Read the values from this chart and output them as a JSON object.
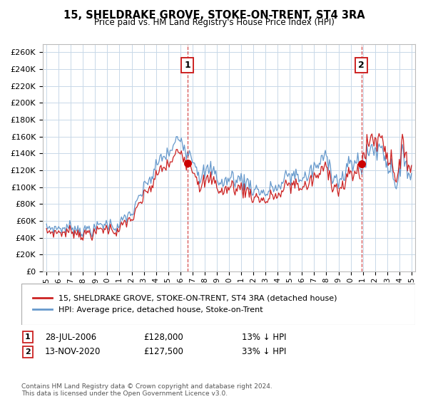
{
  "title": "15, SHELDRAKE GROVE, STOKE-ON-TRENT, ST4 3RA",
  "subtitle": "Price paid vs. HM Land Registry's House Price Index (HPI)",
  "ylim": [
    0,
    270000
  ],
  "yticks": [
    0,
    20000,
    40000,
    60000,
    80000,
    100000,
    120000,
    140000,
    160000,
    180000,
    200000,
    220000,
    240000,
    260000
  ],
  "fig_bg": "#ffffff",
  "plot_bg": "#ffffff",
  "grid_color": "#c8d8e8",
  "hpi_color": "#6699cc",
  "price_color": "#cc2222",
  "vline_color": "#cc2222",
  "marker_color": "#cc0000",
  "t1_year": 2006.583,
  "t2_year": 2020.875,
  "price1": 128000,
  "price2": 127500,
  "annotation1": {
    "label": "1",
    "date": "28-JUL-2006",
    "price": "£128,000",
    "pct": "13% ↓ HPI"
  },
  "annotation2": {
    "label": "2",
    "date": "13-NOV-2020",
    "price": "£127,500",
    "pct": "33% ↓ HPI"
  },
  "legend1": "15, SHELDRAKE GROVE, STOKE-ON-TRENT, ST4 3RA (detached house)",
  "legend2": "HPI: Average price, detached house, Stoke-on-Trent",
  "footer": "Contains HM Land Registry data © Crown copyright and database right 2024.\nThis data is licensed under the Open Government Licence v3.0.",
  "xtick_years": [
    1995,
    1996,
    1997,
    1998,
    1999,
    2000,
    2001,
    2002,
    2003,
    2004,
    2005,
    2006,
    2007,
    2008,
    2009,
    2010,
    2011,
    2012,
    2013,
    2014,
    2015,
    2016,
    2017,
    2018,
    2019,
    2020,
    2021,
    2022,
    2023,
    2024,
    2025
  ],
  "xlim_left": 1994.7,
  "xlim_right": 2025.3
}
